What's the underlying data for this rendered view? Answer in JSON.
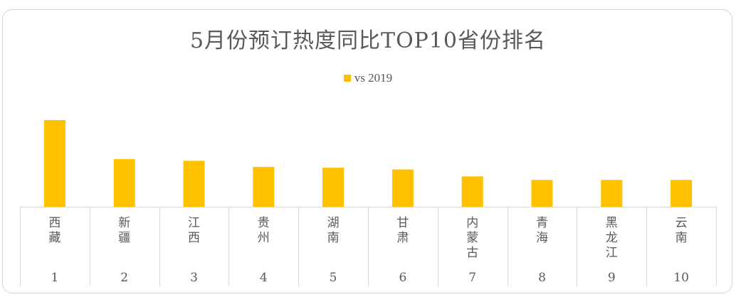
{
  "title": "5月份预订热度同比TOP10省份排名",
  "legend": {
    "label": "vs 2019",
    "color": "#FFC000"
  },
  "chart_data": {
    "type": "bar",
    "title": "5月份预订热度同比TOP10省份排名",
    "categories": [
      "西藏",
      "新疆",
      "江西",
      "贵州",
      "湖南",
      "甘肃",
      "内蒙古",
      "青海",
      "黑龙江",
      "云南"
    ],
    "ranks": [
      "1",
      "2",
      "3",
      "4",
      "5",
      "6",
      "7",
      "8",
      "9",
      "10"
    ],
    "series": [
      {
        "name": "vs 2019",
        "color": "#FFC000",
        "values": [
          100,
          55,
          53,
          46,
          45,
          43,
          35,
          31,
          31,
          31
        ]
      }
    ],
    "ylim": [
      0,
      100
    ],
    "yaxis_visible": false,
    "grid": false,
    "legend_position": "top"
  }
}
